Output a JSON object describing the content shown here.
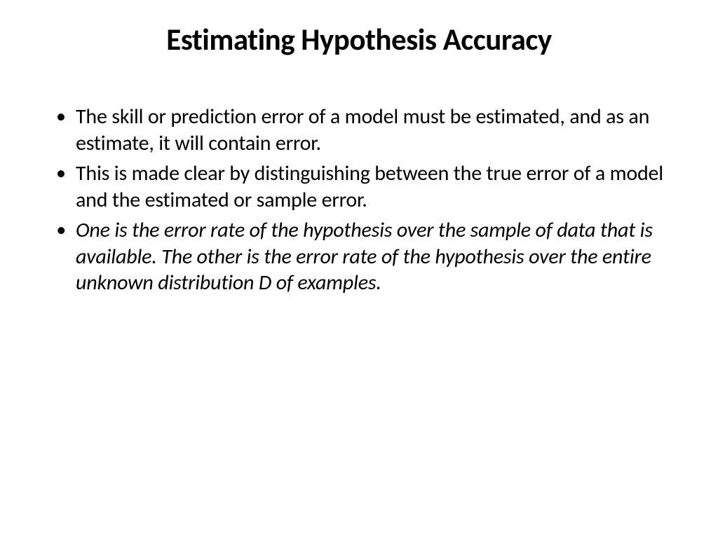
{
  "slide": {
    "title": "Estimating Hypothesis Accuracy",
    "bullets": [
      {
        "text": "The skill or prediction error of a model must be estimated, and as an estimate, it will contain error.",
        "italic": false
      },
      {
        "text": "This is made clear by distinguishing between the true error of a model and the estimated or sample error.",
        "italic": false
      },
      {
        "text": "One is the error rate of the hypothesis over the sample of data that is available. The other is the error rate of the hypothesis over the entire unknown distribution D of examples.",
        "italic": true
      }
    ],
    "styling": {
      "background_color": "#ffffff",
      "text_color": "#000000",
      "title_fontsize": 43,
      "title_weight": "bold",
      "body_fontsize": 30,
      "font_family": "Calibri",
      "line_height": 1.25
    }
  }
}
